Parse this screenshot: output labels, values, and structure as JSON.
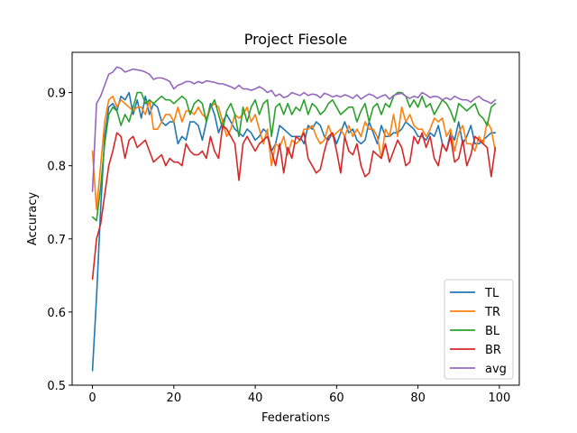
{
  "chart_data": {
    "type": "line",
    "title": "Project Fiesole",
    "xlabel": "Federations",
    "ylabel": "Accuracy",
    "xlim": [
      -5,
      104.9
    ],
    "ylim": [
      0.5,
      0.955
    ],
    "xticks": [
      0,
      20,
      40,
      60,
      80,
      100
    ],
    "yticks": [
      0.5,
      0.6,
      0.7,
      0.8,
      0.9
    ],
    "xtick_labels": [
      "0",
      "20",
      "40",
      "60",
      "80",
      "100"
    ],
    "ytick_labels": [
      "0.5",
      "0.6",
      "0.7",
      "0.8",
      "0.9"
    ],
    "grid": false,
    "legend_position": "lower-right",
    "series": [
      {
        "name": "TL",
        "color": "#1f77b4",
        "x": [
          0,
          1,
          2,
          3,
          4,
          5,
          6,
          7,
          8,
          9,
          10,
          11,
          12,
          13,
          14,
          15,
          16,
          17,
          18,
          19,
          20,
          21,
          22,
          23,
          24,
          25,
          26,
          27,
          28,
          29,
          30,
          31,
          32,
          33,
          34,
          35,
          36,
          37,
          38,
          39,
          40,
          41,
          42,
          43,
          44,
          45,
          46,
          47,
          48,
          49,
          50,
          51,
          52,
          53,
          54,
          55,
          56,
          57,
          58,
          59,
          60,
          61,
          62,
          63,
          64,
          65,
          66,
          67,
          68,
          69,
          70,
          71,
          72,
          73,
          74,
          75,
          76,
          77,
          78,
          79,
          80,
          81,
          82,
          83,
          84,
          85,
          86,
          87,
          88,
          89,
          90,
          91,
          92,
          93,
          94,
          95,
          96,
          97,
          98,
          99
        ],
        "values": [
          0.52,
          0.62,
          0.74,
          0.84,
          0.88,
          0.885,
          0.875,
          0.895,
          0.89,
          0.9,
          0.87,
          0.89,
          0.865,
          0.895,
          0.87,
          0.885,
          0.88,
          0.86,
          0.855,
          0.86,
          0.86,
          0.83,
          0.84,
          0.835,
          0.86,
          0.86,
          0.855,
          0.835,
          0.86,
          0.885,
          0.87,
          0.845,
          0.86,
          0.87,
          0.86,
          0.85,
          0.845,
          0.84,
          0.85,
          0.845,
          0.835,
          0.84,
          0.85,
          0.845,
          0.82,
          0.83,
          0.855,
          0.85,
          0.845,
          0.84,
          0.84,
          0.84,
          0.83,
          0.855,
          0.85,
          0.86,
          0.855,
          0.84,
          0.835,
          0.845,
          0.83,
          0.845,
          0.86,
          0.845,
          0.85,
          0.835,
          0.83,
          0.835,
          0.86,
          0.845,
          0.83,
          0.855,
          0.84,
          0.84,
          0.845,
          0.845,
          0.85,
          0.86,
          0.855,
          0.85,
          0.84,
          0.84,
          0.835,
          0.845,
          0.84,
          0.855,
          0.83,
          0.82,
          0.845,
          0.835,
          0.86,
          0.83,
          0.84,
          0.855,
          0.83,
          0.83,
          0.835,
          0.84,
          0.845,
          0.845
        ]
      },
      {
        "name": "TR",
        "color": "#ff7f0e",
        "x": [
          0,
          1,
          2,
          3,
          4,
          5,
          6,
          7,
          8,
          9,
          10,
          11,
          12,
          13,
          14,
          15,
          16,
          17,
          18,
          19,
          20,
          21,
          22,
          23,
          24,
          25,
          26,
          27,
          28,
          29,
          30,
          31,
          32,
          33,
          34,
          35,
          36,
          37,
          38,
          39,
          40,
          41,
          42,
          43,
          44,
          45,
          46,
          47,
          48,
          49,
          50,
          51,
          52,
          53,
          54,
          55,
          56,
          57,
          58,
          59,
          60,
          61,
          62,
          63,
          64,
          65,
          66,
          67,
          68,
          69,
          70,
          71,
          72,
          73,
          74,
          75,
          76,
          77,
          78,
          79,
          80,
          81,
          82,
          83,
          84,
          85,
          86,
          87,
          88,
          89,
          90,
          91,
          92,
          93,
          94,
          95,
          96,
          97,
          98,
          99
        ],
        "values": [
          0.82,
          0.74,
          0.8,
          0.86,
          0.89,
          0.895,
          0.88,
          0.89,
          0.885,
          0.88,
          0.875,
          0.88,
          0.88,
          0.87,
          0.89,
          0.85,
          0.85,
          0.86,
          0.87,
          0.87,
          0.86,
          0.88,
          0.86,
          0.875,
          0.875,
          0.87,
          0.88,
          0.87,
          0.865,
          0.88,
          0.885,
          0.88,
          0.86,
          0.84,
          0.85,
          0.87,
          0.865,
          0.87,
          0.88,
          0.86,
          0.87,
          0.85,
          0.83,
          0.85,
          0.8,
          0.83,
          0.825,
          0.84,
          0.815,
          0.835,
          0.83,
          0.835,
          0.85,
          0.85,
          0.855,
          0.84,
          0.83,
          0.835,
          0.855,
          0.84,
          0.845,
          0.85,
          0.84,
          0.855,
          0.84,
          0.85,
          0.84,
          0.86,
          0.85,
          0.85,
          0.84,
          0.81,
          0.85,
          0.84,
          0.87,
          0.84,
          0.88,
          0.86,
          0.87,
          0.855,
          0.85,
          0.85,
          0.84,
          0.85,
          0.865,
          0.86,
          0.865,
          0.84,
          0.85,
          0.82,
          0.845,
          0.855,
          0.83,
          0.83,
          0.82,
          0.84,
          0.83,
          0.86,
          0.85,
          0.82
        ]
      },
      {
        "name": "BL",
        "color": "#2ca02c",
        "x": [
          0,
          1,
          2,
          3,
          4,
          5,
          6,
          7,
          8,
          9,
          10,
          11,
          12,
          13,
          14,
          15,
          16,
          17,
          18,
          19,
          20,
          21,
          22,
          23,
          24,
          25,
          26,
          27,
          28,
          29,
          30,
          31,
          32,
          33,
          34,
          35,
          36,
          37,
          38,
          39,
          40,
          41,
          42,
          43,
          44,
          45,
          46,
          47,
          48,
          49,
          50,
          51,
          52,
          53,
          54,
          55,
          56,
          57,
          58,
          59,
          60,
          61,
          62,
          63,
          64,
          65,
          66,
          67,
          68,
          69,
          70,
          71,
          72,
          73,
          74,
          75,
          76,
          77,
          78,
          79,
          80,
          81,
          82,
          83,
          84,
          85,
          86,
          87,
          88,
          89,
          90,
          91,
          92,
          93,
          94,
          95,
          96,
          97,
          98,
          99
        ],
        "values": [
          0.73,
          0.725,
          0.77,
          0.83,
          0.87,
          0.88,
          0.875,
          0.855,
          0.87,
          0.86,
          0.88,
          0.9,
          0.9,
          0.885,
          0.89,
          0.885,
          0.89,
          0.895,
          0.89,
          0.89,
          0.885,
          0.89,
          0.895,
          0.89,
          0.87,
          0.885,
          0.89,
          0.885,
          0.86,
          0.88,
          0.89,
          0.87,
          0.85,
          0.875,
          0.885,
          0.87,
          0.84,
          0.88,
          0.86,
          0.88,
          0.89,
          0.87,
          0.885,
          0.89,
          0.84,
          0.88,
          0.885,
          0.87,
          0.885,
          0.87,
          0.88,
          0.875,
          0.89,
          0.87,
          0.885,
          0.88,
          0.87,
          0.875,
          0.885,
          0.89,
          0.88,
          0.87,
          0.875,
          0.88,
          0.88,
          0.86,
          0.875,
          0.885,
          0.86,
          0.88,
          0.885,
          0.87,
          0.885,
          0.88,
          0.895,
          0.9,
          0.9,
          0.895,
          0.88,
          0.89,
          0.88,
          0.895,
          0.88,
          0.885,
          0.87,
          0.88,
          0.89,
          0.885,
          0.875,
          0.86,
          0.885,
          0.88,
          0.875,
          0.88,
          0.885,
          0.87,
          0.865,
          0.855,
          0.88,
          0.885
        ]
      },
      {
        "name": "BR",
        "color": "#d62728",
        "x": [
          0,
          1,
          2,
          3,
          4,
          5,
          6,
          7,
          8,
          9,
          10,
          11,
          12,
          13,
          14,
          15,
          16,
          17,
          18,
          19,
          20,
          21,
          22,
          23,
          24,
          25,
          26,
          27,
          28,
          29,
          30,
          31,
          32,
          33,
          34,
          35,
          36,
          37,
          38,
          39,
          40,
          41,
          42,
          43,
          44,
          45,
          46,
          47,
          48,
          49,
          50,
          51,
          52,
          53,
          54,
          55,
          56,
          57,
          58,
          59,
          60,
          61,
          62,
          63,
          64,
          65,
          66,
          67,
          68,
          69,
          70,
          71,
          72,
          73,
          74,
          75,
          76,
          77,
          78,
          79,
          80,
          81,
          82,
          83,
          84,
          85,
          86,
          87,
          88,
          89,
          90,
          91,
          92,
          93,
          94,
          95,
          96,
          97,
          98,
          99
        ],
        "values": [
          0.645,
          0.7,
          0.72,
          0.76,
          0.8,
          0.82,
          0.845,
          0.84,
          0.81,
          0.835,
          0.84,
          0.825,
          0.83,
          0.835,
          0.82,
          0.805,
          0.81,
          0.815,
          0.8,
          0.81,
          0.805,
          0.805,
          0.8,
          0.83,
          0.82,
          0.815,
          0.815,
          0.82,
          0.81,
          0.84,
          0.82,
          0.81,
          0.855,
          0.85,
          0.84,
          0.83,
          0.78,
          0.83,
          0.84,
          0.83,
          0.82,
          0.83,
          0.835,
          0.84,
          0.82,
          0.8,
          0.83,
          0.79,
          0.825,
          0.81,
          0.84,
          0.835,
          0.845,
          0.81,
          0.8,
          0.79,
          0.795,
          0.82,
          0.84,
          0.845,
          0.82,
          0.79,
          0.84,
          0.82,
          0.815,
          0.83,
          0.8,
          0.785,
          0.79,
          0.82,
          0.815,
          0.81,
          0.83,
          0.805,
          0.82,
          0.835,
          0.825,
          0.8,
          0.805,
          0.84,
          0.83,
          0.845,
          0.825,
          0.84,
          0.81,
          0.8,
          0.83,
          0.82,
          0.84,
          0.805,
          0.81,
          0.835,
          0.8,
          0.815,
          0.84,
          0.835,
          0.83,
          0.825,
          0.785,
          0.825
        ]
      },
      {
        "name": "avg",
        "color": "#9467bd",
        "x": [
          0,
          1,
          2,
          3,
          4,
          5,
          6,
          7,
          8,
          9,
          10,
          11,
          12,
          13,
          14,
          15,
          16,
          17,
          18,
          19,
          20,
          21,
          22,
          23,
          24,
          25,
          26,
          27,
          28,
          29,
          30,
          31,
          32,
          33,
          34,
          35,
          36,
          37,
          38,
          39,
          40,
          41,
          42,
          43,
          44,
          45,
          46,
          47,
          48,
          49,
          50,
          51,
          52,
          53,
          54,
          55,
          56,
          57,
          58,
          59,
          60,
          61,
          62,
          63,
          64,
          65,
          66,
          67,
          68,
          69,
          70,
          71,
          72,
          73,
          74,
          75,
          76,
          77,
          78,
          79,
          80,
          81,
          82,
          83,
          84,
          85,
          86,
          87,
          88,
          89,
          90,
          91,
          92,
          93,
          94,
          95,
          96,
          97,
          98,
          99
        ],
        "values": [
          0.765,
          0.885,
          0.895,
          0.91,
          0.925,
          0.928,
          0.935,
          0.933,
          0.928,
          0.93,
          0.932,
          0.931,
          0.93,
          0.928,
          0.925,
          0.918,
          0.92,
          0.92,
          0.918,
          0.915,
          0.905,
          0.91,
          0.912,
          0.915,
          0.915,
          0.912,
          0.915,
          0.913,
          0.916,
          0.915,
          0.914,
          0.912,
          0.912,
          0.91,
          0.908,
          0.905,
          0.91,
          0.905,
          0.905,
          0.903,
          0.905,
          0.908,
          0.905,
          0.9,
          0.903,
          0.895,
          0.898,
          0.893,
          0.895,
          0.9,
          0.898,
          0.896,
          0.9,
          0.896,
          0.898,
          0.897,
          0.893,
          0.899,
          0.897,
          0.894,
          0.896,
          0.894,
          0.897,
          0.895,
          0.892,
          0.897,
          0.891,
          0.895,
          0.898,
          0.896,
          0.892,
          0.895,
          0.897,
          0.891,
          0.896,
          0.898,
          0.899,
          0.895,
          0.892,
          0.895,
          0.893,
          0.9,
          0.897,
          0.893,
          0.895,
          0.894,
          0.89,
          0.893,
          0.89,
          0.895,
          0.892,
          0.89,
          0.89,
          0.887,
          0.892,
          0.895,
          0.89,
          0.888,
          0.885,
          0.89
        ]
      }
    ]
  }
}
